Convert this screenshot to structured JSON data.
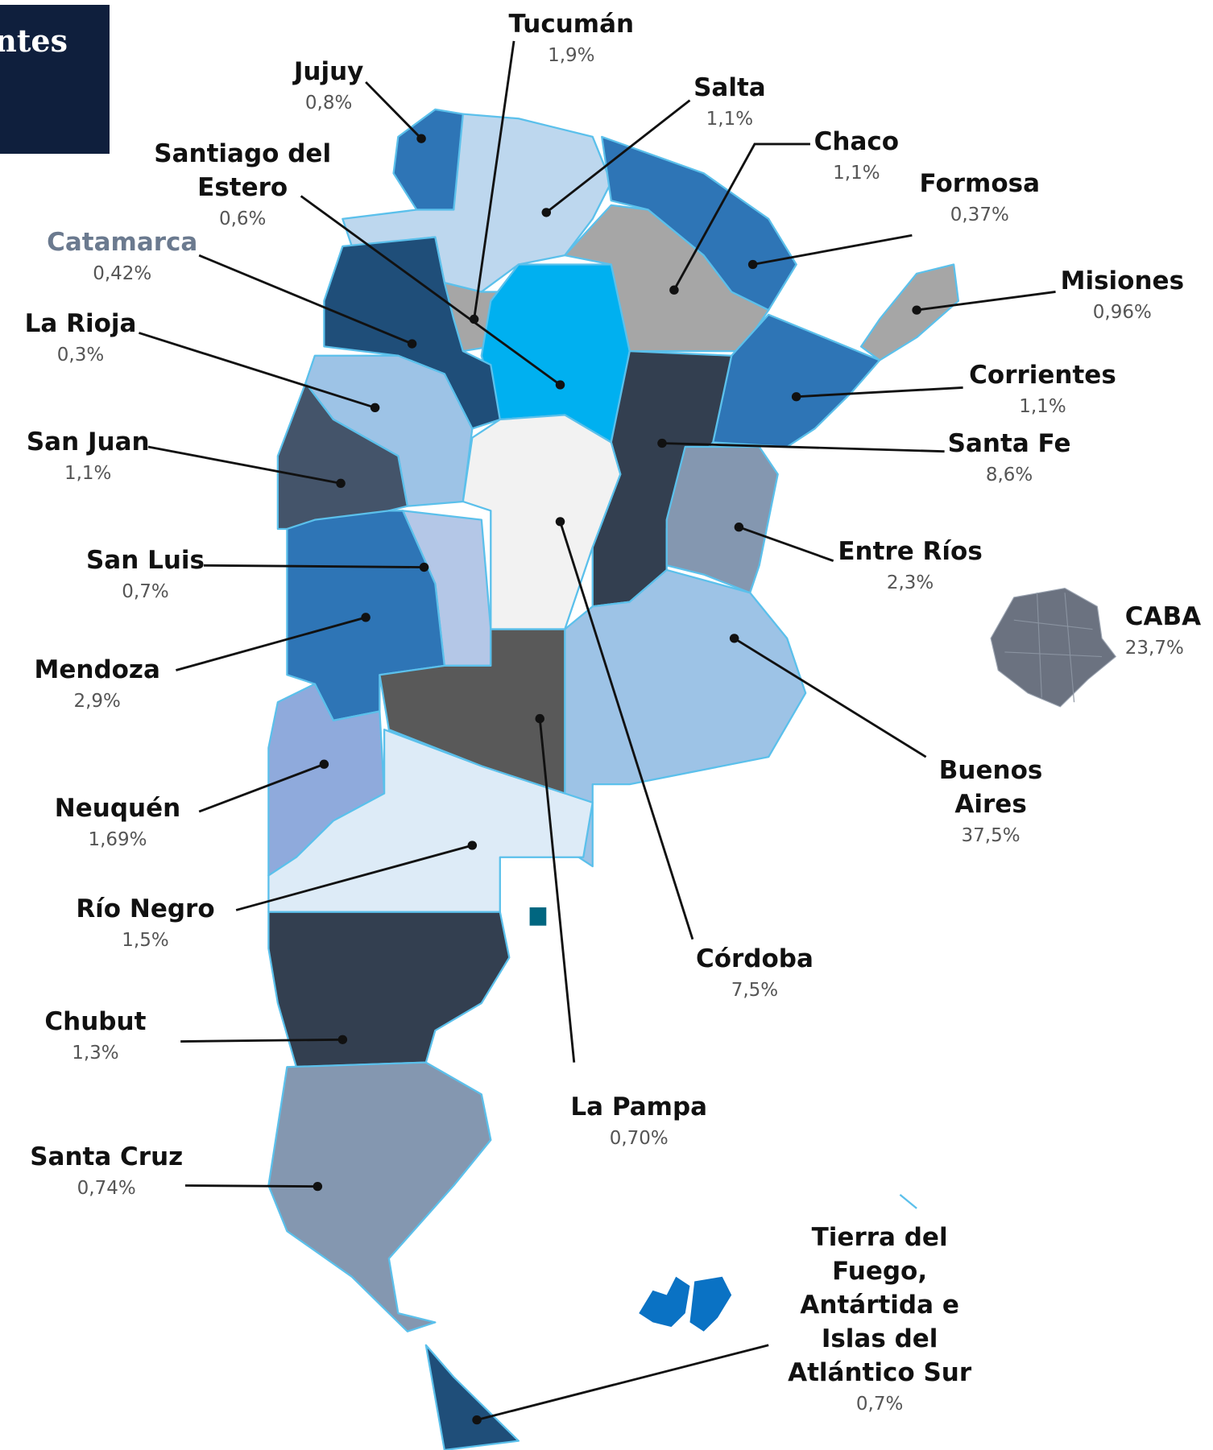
{
  "header": {
    "title": "ntes"
  },
  "provinces": [
    {
      "name": "Tucumán",
      "share": "1,9%"
    },
    {
      "name": "Jujuy",
      "share": "0,8%"
    },
    {
      "name": "Salta",
      "share": "1,1%"
    },
    {
      "name": "Chaco",
      "share": "1,1%"
    },
    {
      "name": "Santiago del\nEstero",
      "share": "0,6%"
    },
    {
      "name": "Formosa",
      "share": "0,37%"
    },
    {
      "name": "Catamarca",
      "share": "0,42%"
    },
    {
      "name": "Misiones",
      "share": "0,96%"
    },
    {
      "name": "La Rioja",
      "share": "0,3%"
    },
    {
      "name": "Corrientes",
      "share": "1,1%"
    },
    {
      "name": "San Juan",
      "share": "1,1%"
    },
    {
      "name": "Santa Fe",
      "share": "8,6%"
    },
    {
      "name": "San Luis",
      "share": "0,7%"
    },
    {
      "name": "Entre Ríos",
      "share": "2,3%"
    },
    {
      "name": "CABA",
      "share": "23,7%"
    },
    {
      "name": "Mendoza",
      "share": "2,9%"
    },
    {
      "name": "Buenos\nAires",
      "share": "37,5%"
    },
    {
      "name": "Neuquén",
      "share": "1,69%"
    },
    {
      "name": "Río Negro",
      "share": "1,5%"
    },
    {
      "name": "Córdoba",
      "share": "7,5%"
    },
    {
      "name": "Chubut",
      "share": "1,3%"
    },
    {
      "name": "La Pampa",
      "share": "0,70%"
    },
    {
      "name": "Santa Cruz",
      "share": "0,74%"
    },
    {
      "name": "Tierra del\nFuego,\nAntártida e\nIslas del\nAtlántico Sur",
      "share": "0,7%"
    }
  ]
}
